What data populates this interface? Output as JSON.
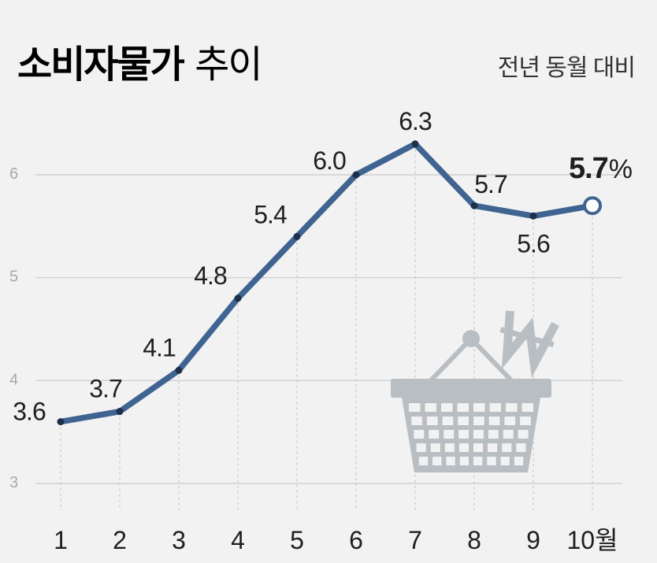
{
  "title": {
    "bold": "소비자물가",
    "regular": "추이"
  },
  "note": "전년 동월 대비",
  "colors": {
    "line": "#3f6491",
    "grid": "#c8c8c8",
    "basket": "#b9bec3",
    "background": "#f2f2f2"
  },
  "icons": [
    "shopping-basket-icon",
    "won-sign-icon"
  ],
  "chart_data": {
    "type": "line",
    "categories": [
      "1",
      "2",
      "3",
      "4",
      "5",
      "6",
      "7",
      "8",
      "9",
      "10월"
    ],
    "series": [
      {
        "values": [
          3.6,
          3.7,
          4.1,
          4.8,
          5.4,
          6.0,
          6.3,
          5.7,
          5.6,
          5.7
        ]
      }
    ],
    "data_labels": [
      "3.6",
      "3.7",
      "4.1",
      "4.8",
      "5.4",
      "6.0",
      "6.3",
      "5.7",
      "5.6",
      "5.7"
    ],
    "last_label_unit": "%",
    "yticks": [
      3,
      4,
      5,
      6
    ],
    "ylim": [
      3,
      6.5
    ],
    "grid": true
  }
}
